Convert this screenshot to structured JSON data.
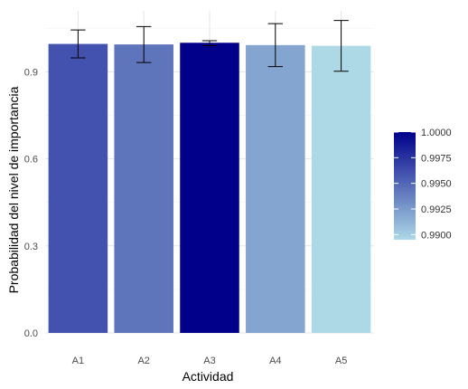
{
  "chart_data": {
    "type": "bar",
    "title": "",
    "xlabel": "Actividad",
    "ylabel": "Probabilidad del nivel de importancia",
    "categories": [
      "A1",
      "A2",
      "A3",
      "A4",
      "A5"
    ],
    "values": [
      0.996,
      0.9943,
      1.0,
      0.992,
      0.9895
    ],
    "error_low": [
      0.948,
      0.932,
      0.99,
      0.918,
      0.902
    ],
    "error_high": [
      1.044,
      1.056,
      1.007,
      1.066,
      1.077
    ],
    "ylim": [
      0,
      1.11
    ],
    "yticks": [
      0.0,
      0.3,
      0.6,
      0.9
    ],
    "ytick_labels": [
      "0.0",
      "0.3",
      "0.6",
      "0.9"
    ],
    "grid": true,
    "legend": {
      "placement": "right",
      "type": "colorbar",
      "range": [
        0.9895,
        1.0
      ],
      "ticks": [
        1.0,
        0.9975,
        0.995,
        0.9925,
        0.99
      ],
      "tick_labels": [
        "1.0000",
        "0.9975",
        "0.9950",
        "0.9925",
        "0.9900"
      ],
      "color_low": "#add8e6",
      "color_high": "#00008b"
    }
  }
}
